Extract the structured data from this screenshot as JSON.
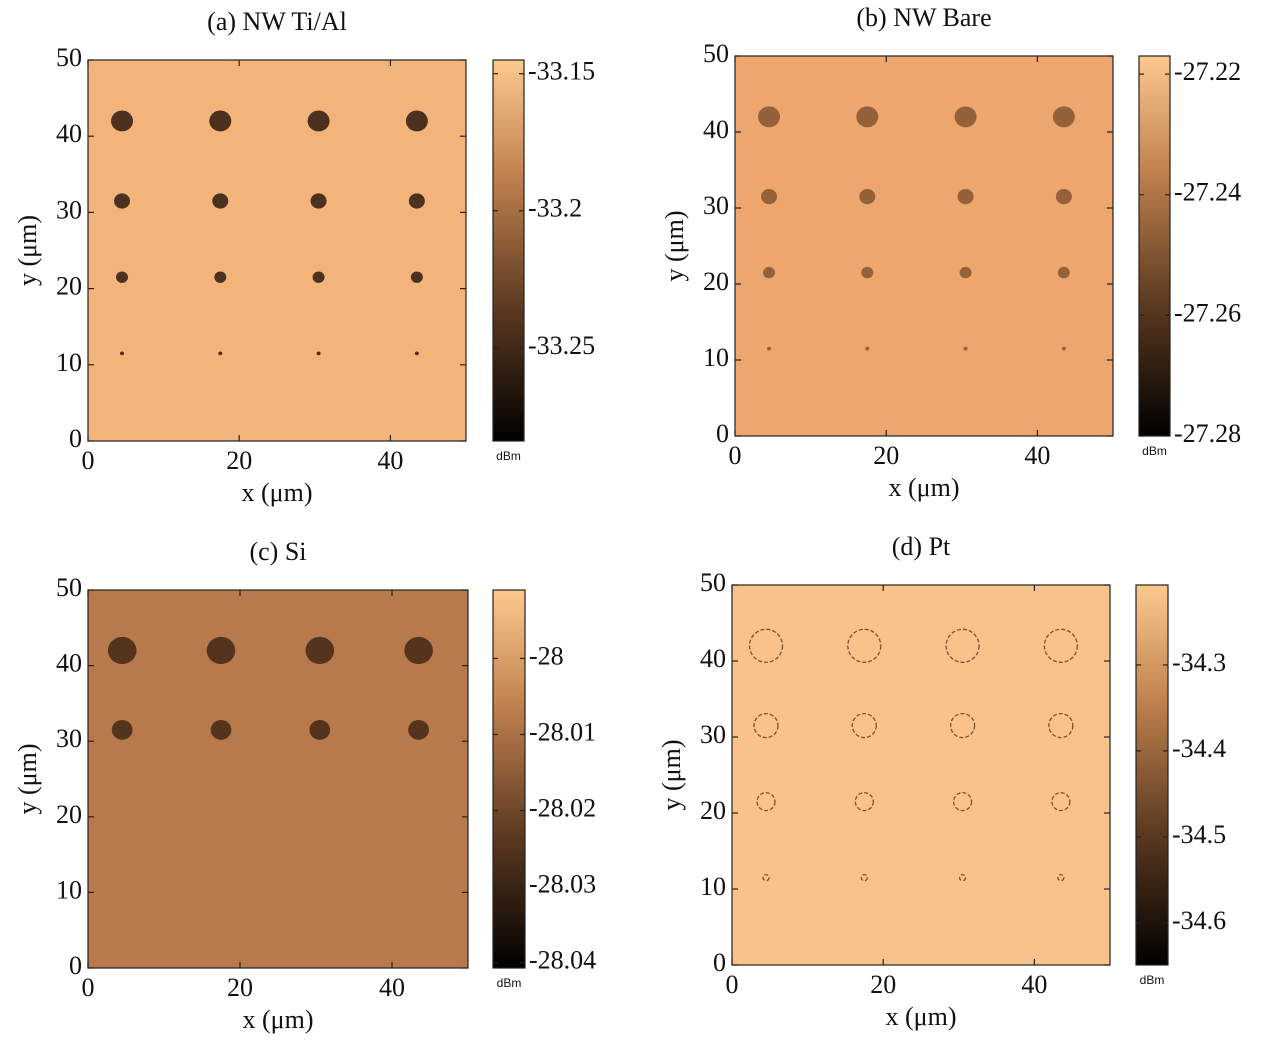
{
  "chart_data": [
    {
      "type": "heatmap",
      "title": "(a) NW Ti/Al",
      "xlabel": "x (μm)",
      "ylabel": "y (μm)",
      "xlim": [
        0,
        50
      ],
      "xticks": [
        0,
        20,
        40
      ],
      "ylim": [
        0,
        50
      ],
      "yticks": [
        0,
        10,
        20,
        30,
        40,
        50
      ],
      "colormap": "copper",
      "map_color": "#f3b47c",
      "spot_color": "#3a2414",
      "colorbar_label": "dBm",
      "clim": [
        -33.284,
        -33.145
      ],
      "cticks": [
        -33.15,
        -33.2,
        -33.25
      ]
    },
    {
      "type": "heatmap",
      "title": "(b) NW Bare",
      "xlabel": "x (μm)",
      "ylabel": "y (μm)",
      "xlim": [
        0,
        50
      ],
      "xticks": [
        0,
        20,
        40
      ],
      "ylim": [
        0,
        50
      ],
      "yticks": [
        0,
        10,
        20,
        30,
        40,
        50
      ],
      "colormap": "copper",
      "map_color": "#eda66e",
      "spot_color": "#8a5a34",
      "colorbar_label": "dBm",
      "clim": [
        -27.28,
        -27.217
      ],
      "cticks": [
        -27.22,
        -27.24,
        -27.26,
        -27.28
      ]
    },
    {
      "type": "heatmap",
      "title": "(c) Si",
      "xlabel": "x (μm)",
      "ylabel": "y (μm)",
      "xlim": [
        0,
        50
      ],
      "xticks": [
        0,
        20,
        40
      ],
      "ylim": [
        0,
        50
      ],
      "yticks": [
        0,
        10,
        20,
        30,
        40,
        50
      ],
      "colormap": "copper",
      "map_color": "#b87a4c",
      "spot_color": "#4a2c18",
      "colorbar_label": "dBm",
      "clim": [
        -28.0407,
        -27.991
      ],
      "cticks": [
        -28,
        -28.01,
        -28.02,
        -28.03,
        -28.04
      ]
    },
    {
      "type": "heatmap",
      "title": "(d) Pt",
      "xlabel": "x (μm)",
      "ylabel": "y (μm)",
      "xlim": [
        0,
        50
      ],
      "xticks": [
        0,
        20,
        40
      ],
      "ylim": [
        0,
        50
      ],
      "yticks": [
        0,
        10,
        20,
        30,
        40,
        50
      ],
      "colormap": "copper",
      "map_color": "#f8c28a",
      "spot_color": "#7a5030",
      "colorbar_label": "dBm",
      "clim": [
        -34.649,
        -34.207
      ],
      "cticks": [
        -34.3,
        -34.4,
        -34.5,
        -34.6
      ]
    }
  ]
}
